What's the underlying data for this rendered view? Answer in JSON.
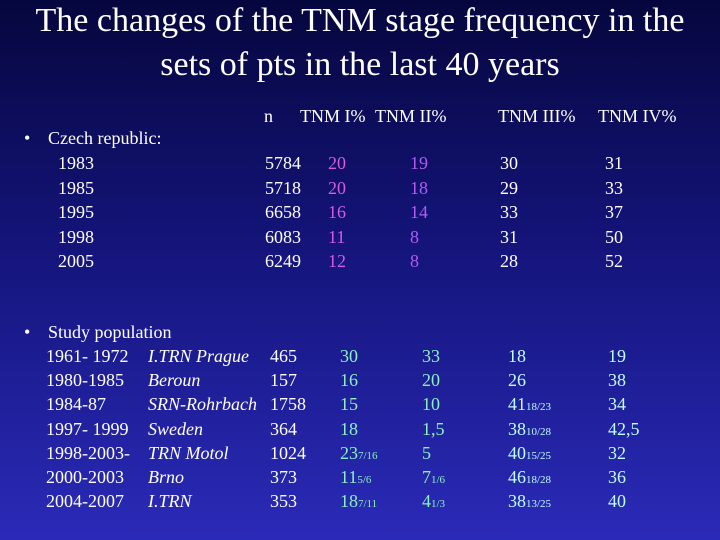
{
  "title": [
    "The changes of the TNM stage frequency in the",
    "sets of pts in the last 40 years"
  ],
  "header": [
    "n",
    "TNM I%",
    "TNM II%",
    "TNM III%",
    "TNM IV%"
  ],
  "sections": [
    {
      "label": "Czech republic:",
      "rows": [
        {
          "period": "1983",
          "cells": [
            "5784",
            "20",
            "19",
            "30",
            "31"
          ]
        },
        {
          "period": "1985",
          "cells": [
            "5718",
            "20",
            "18",
            "29",
            "33"
          ]
        },
        {
          "period": "1995",
          "cells": [
            "6658",
            "16",
            "14",
            "33",
            "37"
          ]
        },
        {
          "period": "1998",
          "cells": [
            "6083",
            "11",
            "8",
            "31",
            "50"
          ]
        },
        {
          "period": "2005",
          "cells": [
            "6249",
            "12",
            "8",
            "28",
            "52"
          ]
        }
      ]
    },
    {
      "label": "Study population",
      "rows": [
        {
          "period": "1961- 1972",
          "place": "I.TRN Prague",
          "cells": [
            "465",
            "30",
            "33",
            "18",
            "19"
          ]
        },
        {
          "period": "1980-1985",
          "place": "Beroun",
          "cells": [
            "157",
            "16",
            "20",
            "26",
            "38"
          ]
        },
        {
          "period": "1984-87",
          "place": "SRN-Rohrbach",
          "cells": [
            "1758",
            "15",
            "10",
            {
              "text": "41",
              "sub": "18/23"
            },
            "34"
          ]
        },
        {
          "period": "1997- 1999",
          "place": "Sweden",
          "cells": [
            "364",
            "18",
            "1,5",
            {
              "text": "38",
              "sub": "10/28"
            },
            "42,5"
          ]
        },
        {
          "period": "1998-2003-",
          "place": "TRN Motol",
          "cells": [
            "1024",
            {
              "text": "23",
              "sub": "7/16"
            },
            "5",
            {
              "text": "40",
              "sub": "15/25"
            },
            "32"
          ]
        },
        {
          "period": "2000-2003",
          "place": "Brno",
          "cells": [
            "373",
            {
              "text": "11",
              "sub": "5/6"
            },
            {
              "text": "7",
              "sub": "1/6"
            },
            {
              "text": "46",
              "sub": "18/28"
            },
            "36"
          ]
        },
        {
          "period": "2004-2007",
          "place": "I.TRN",
          "cells": [
            "353",
            {
              "text": "18",
              "sub": "7/11"
            },
            {
              "text": "4",
              "sub": "1/3"
            },
            {
              "text": "38",
              "sub": "13/25"
            },
            "40"
          ]
        }
      ]
    }
  ]
}
